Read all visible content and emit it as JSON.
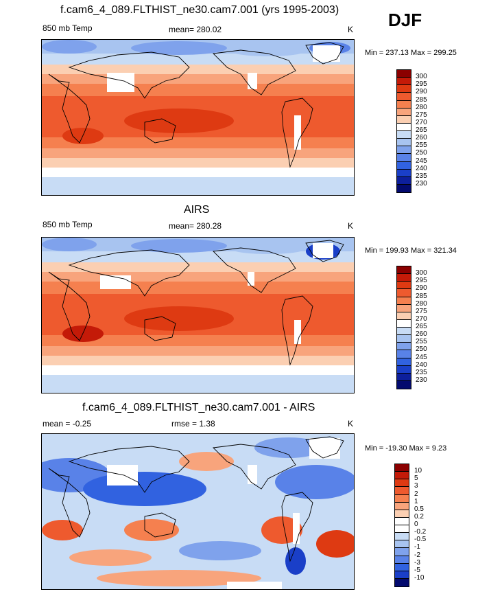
{
  "season": "DJF",
  "panels": [
    {
      "title": "f.cam6_4_089.FLTHIST_ne30.cam7.001 (yrs 1995-2003)",
      "left_label": "850 mb Temp",
      "center_label": "mean= 280.02",
      "units": "K",
      "minmax": "Min = 237.13 Max = 299.25"
    },
    {
      "title": "AIRS",
      "left_label": "850 mb Temp",
      "center_label": "mean= 280.28",
      "units": "K",
      "minmax": "Min = 199.93 Max = 321.34"
    },
    {
      "title": "f.cam6_4_089.FLTHIST_ne30.cam7.001 - AIRS",
      "left_label": "mean =  -0.25",
      "center_label": "rmse =   1.38",
      "units": "K",
      "minmax": "Min = -19.30 Max =   9.23"
    }
  ],
  "chart_data": [
    {
      "type": "heatmap",
      "title": "f.cam6_4_089.FLTHIST_ne30.cam7.001 (yrs 1995-2003)",
      "variable": "850 mb Temp",
      "units": "K",
      "mean": 280.02,
      "min": 237.13,
      "max": 299.25,
      "colorbar_levels": [
        "300",
        "295",
        "290",
        "285",
        "280",
        "275",
        "270",
        "265",
        "260",
        "255",
        "250",
        "245",
        "240",
        "235",
        "230"
      ],
      "colorbar_colors": [
        "#8b0000",
        "#c41a08",
        "#de3a12",
        "#ee5a2e",
        "#f5804f",
        "#f8a47c",
        "#fbcfb2",
        "#ffffff",
        "#c8dcf5",
        "#a8c4f0",
        "#7fa2ec",
        "#5982e8",
        "#3162e0",
        "#1a3fc8",
        "#0d1f9c",
        "#030a6e"
      ]
    },
    {
      "type": "heatmap",
      "title": "AIRS",
      "variable": "850 mb Temp",
      "units": "K",
      "mean": 280.28,
      "min": 199.93,
      "max": 321.34,
      "colorbar_levels": [
        "300",
        "295",
        "290",
        "285",
        "280",
        "275",
        "270",
        "265",
        "260",
        "255",
        "250",
        "245",
        "240",
        "235",
        "230"
      ],
      "colorbar_colors": [
        "#8b0000",
        "#c41a08",
        "#de3a12",
        "#ee5a2e",
        "#f5804f",
        "#f8a47c",
        "#fbcfb2",
        "#ffffff",
        "#c8dcf5",
        "#a8c4f0",
        "#7fa2ec",
        "#5982e8",
        "#3162e0",
        "#1a3fc8",
        "#0d1f9c",
        "#030a6e"
      ]
    },
    {
      "type": "heatmap",
      "title": "f.cam6_4_089.FLTHIST_ne30.cam7.001 - AIRS",
      "units": "K",
      "mean": -0.25,
      "rmse": 1.38,
      "min": -19.3,
      "max": 9.23,
      "colorbar_levels": [
        "10",
        "5",
        "3",
        "2",
        "1",
        "0.5",
        "0.2",
        "0",
        "-0.2",
        "-0.5",
        "-1",
        "-2",
        "-3",
        "-5",
        "-10"
      ],
      "colorbar_colors": [
        "#8b0000",
        "#c41a08",
        "#de3a12",
        "#ee5a2e",
        "#f5804f",
        "#f8a47c",
        "#fbcfb2",
        "#ffffff",
        "#ffffff",
        "#c8dcf5",
        "#a8c4f0",
        "#7fa2ec",
        "#5982e8",
        "#3162e0",
        "#1a3fc8",
        "#030a6e"
      ]
    }
  ]
}
